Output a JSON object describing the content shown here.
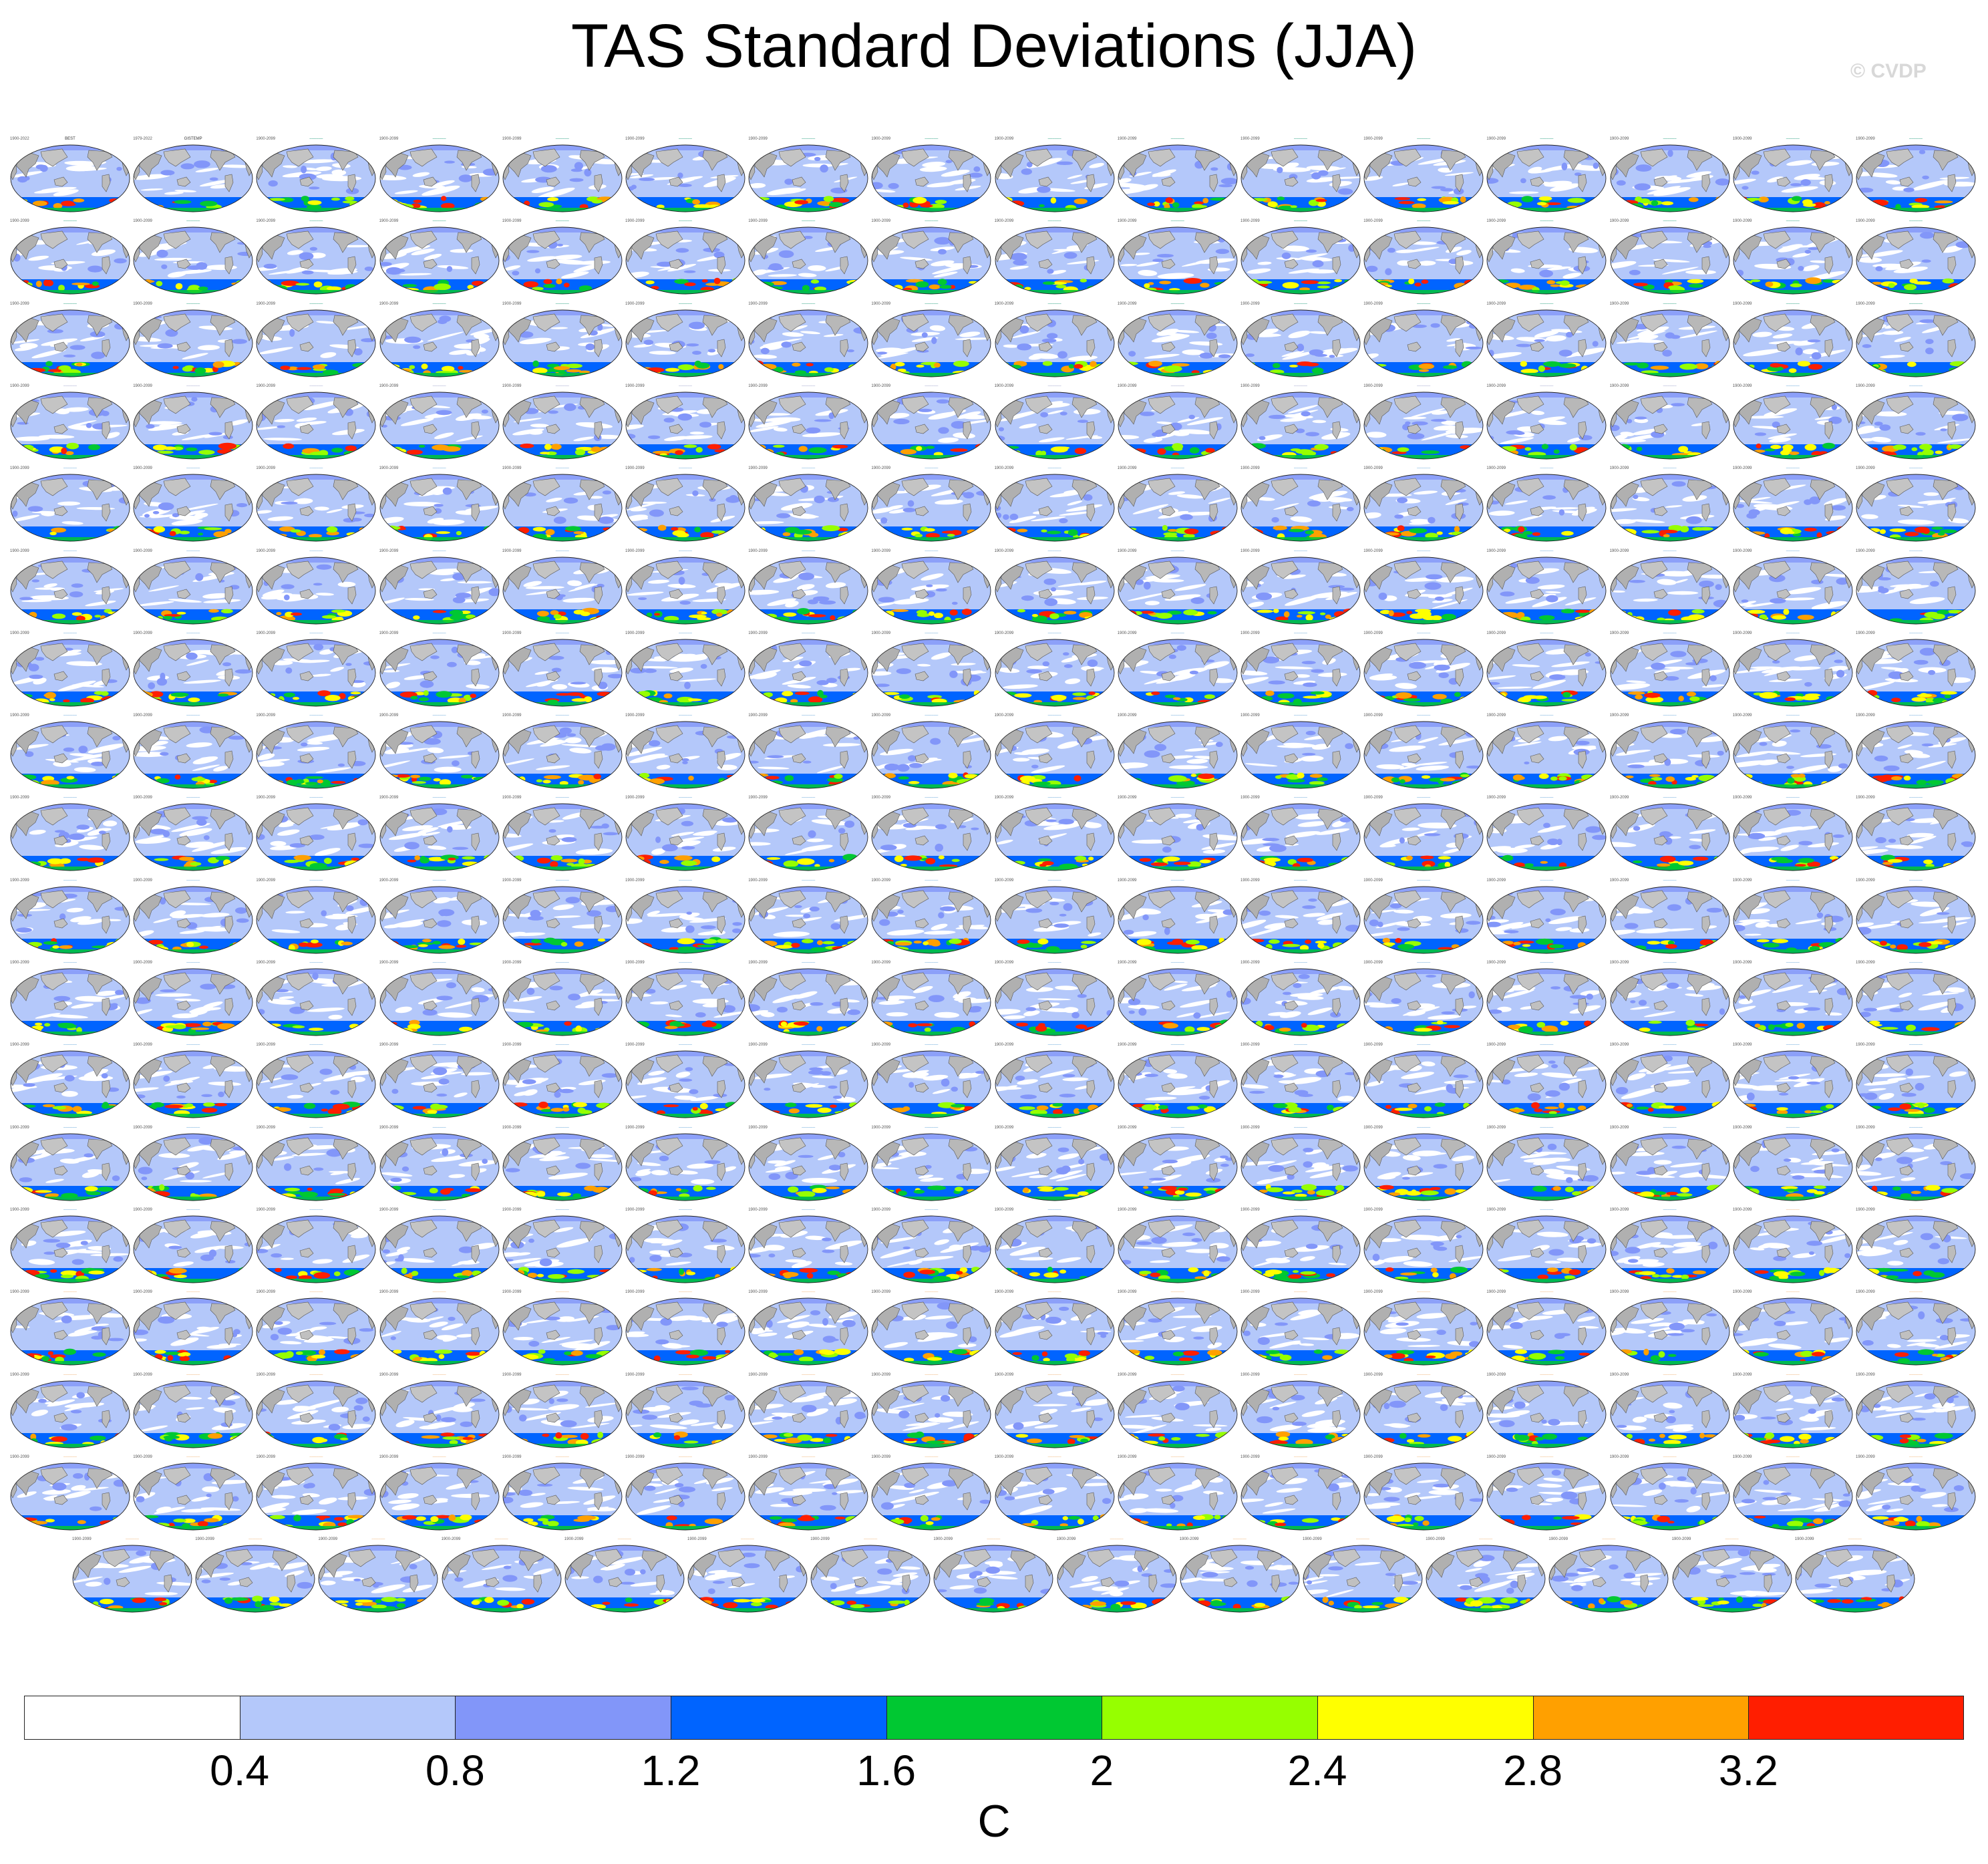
{
  "figure": {
    "title": "TAS Standard Deviations (JJA)",
    "credit": "© CVDP",
    "units_label": "C"
  },
  "colorbar": {
    "colors": [
      "#ffffff",
      "#b4c8fa",
      "#8296f9",
      "#0064ff",
      "#00c832",
      "#96ff00",
      "#ffff00",
      "#ffa000",
      "#ff1e00"
    ],
    "tick_labels": [
      "0.4",
      "0.8",
      "1.2",
      "1.6",
      "2",
      "2.4",
      "2.8",
      "3.2"
    ]
  },
  "panels": {
    "total_count": 287,
    "first_labels": [
      "BEST",
      "GISTEMP"
    ],
    "first_years": [
      "1900-2022",
      "1979-2022"
    ],
    "model_years": "1900-2099",
    "title_color_groups": [
      {
        "count": 48,
        "color": "#1c9a78"
      },
      {
        "count": 14,
        "color": "#9aa0c8"
      },
      {
        "count": 160,
        "color": "#5aa0d6"
      },
      {
        "count": 65,
        "color": "#f0b070"
      }
    ],
    "projection": "global map, Pacific-centered"
  }
}
